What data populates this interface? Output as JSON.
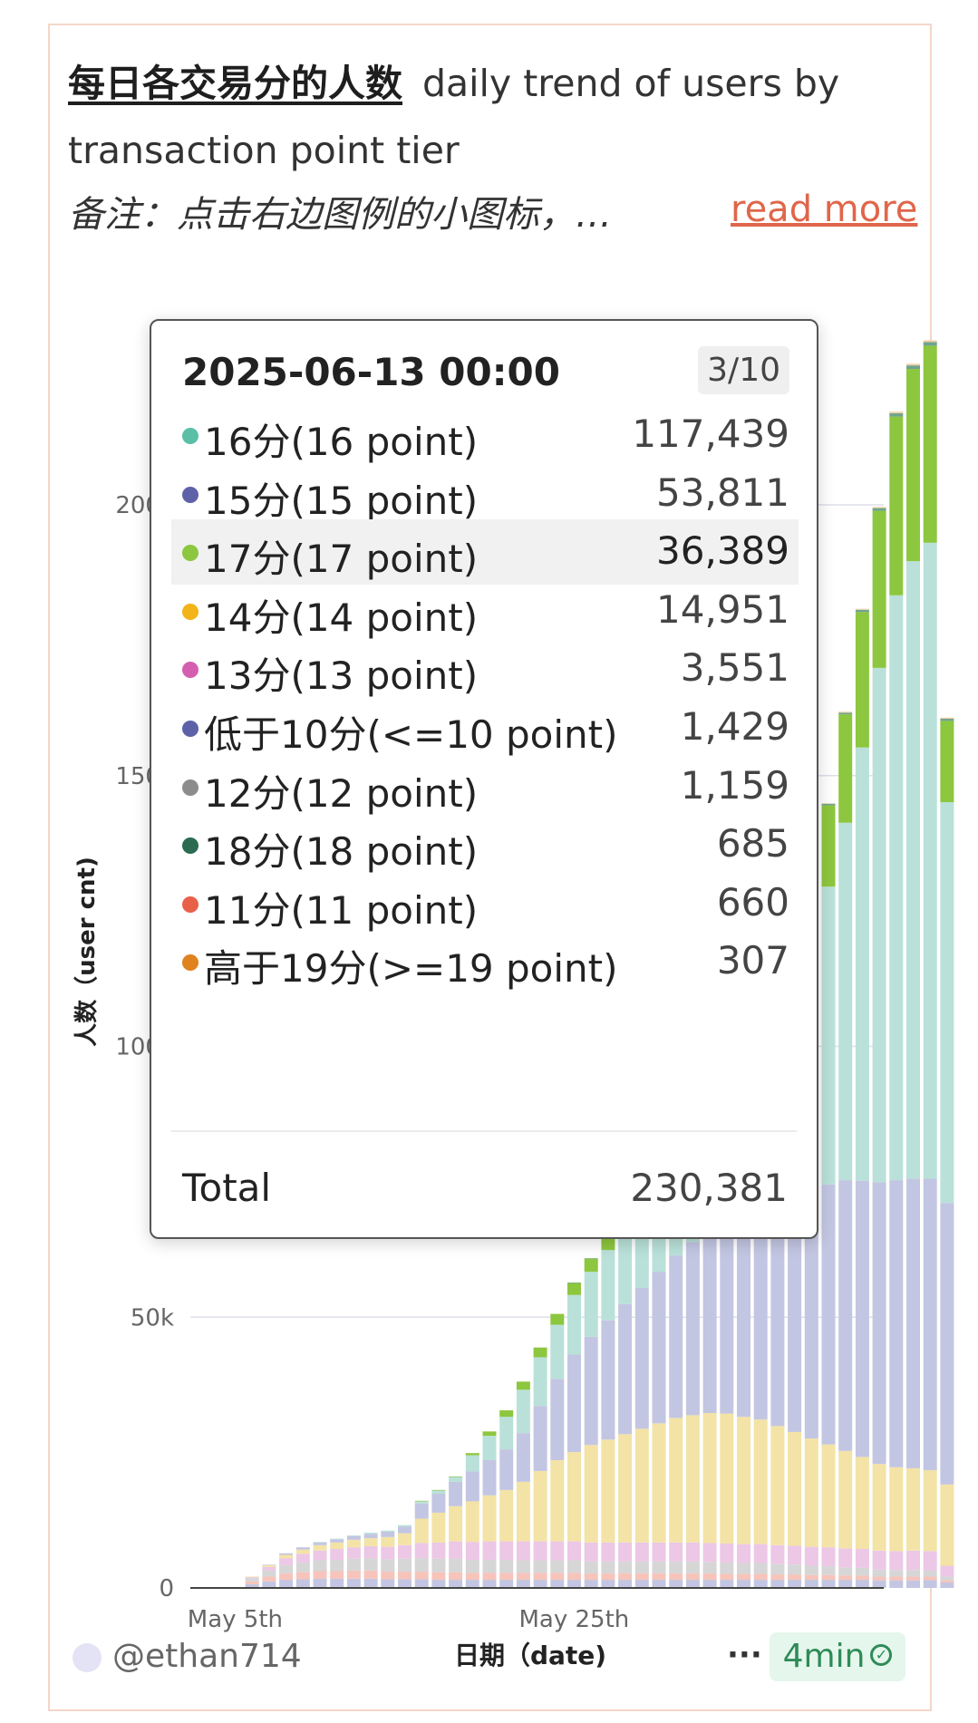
{
  "card": {
    "title_cn": "每日各交易分的人数",
    "title_en": "daily trend of users by transaction point tier",
    "note": "备注：点击右边图例的小图标，…",
    "read_more": "read more"
  },
  "tooltip": {
    "date": "2025-06-13 00:00",
    "page": "3/10",
    "rows": [
      {
        "label": "16分(16 point)",
        "value": "117,439",
        "color": "#5bbfa8"
      },
      {
        "label": "15分(15 point)",
        "value": "53,811",
        "color": "#5d62a8"
      },
      {
        "label": "17分(17 point)",
        "value": "36,389",
        "color": "#8dc63f"
      },
      {
        "label": "14分(14 point)",
        "value": "14,951",
        "color": "#f2b418"
      },
      {
        "label": "13分(13 point)",
        "value": "3,551",
        "color": "#d45fb0"
      },
      {
        "label": "低于10分(<=10 point)",
        "value": "1,429",
        "color": "#5d62a8"
      },
      {
        "label": "12分(12 point)",
        "value": "1,159",
        "color": "#8c8c8c"
      },
      {
        "label": "18分(18 point)",
        "value": "685",
        "color": "#2a6b52"
      },
      {
        "label": "11分(11 point)",
        "value": "660",
        "color": "#e8604a"
      },
      {
        "label": "高于19分(>=19 point)",
        "value": "307",
        "color": "#e0821e"
      }
    ],
    "highlight_index": 2,
    "total_label": "Total",
    "total_value": "230,381"
  },
  "footer": {
    "author": "@ethan714",
    "more": "···",
    "badge": "4min"
  },
  "chart_data": {
    "type": "bar",
    "stacked": true,
    "ylabel": "人数（user cnt)",
    "xlabel": "日期（date)",
    "ylim": [
      0,
      240000
    ],
    "y_ticks": [
      {
        "value": 0,
        "label": "0"
      },
      {
        "value": 50000,
        "label": "50k"
      },
      {
        "value": 100000,
        "label": "100k"
      },
      {
        "value": 150000,
        "label": "150k"
      },
      {
        "value": 200000,
        "label": "200k"
      }
    ],
    "x_ticks": [
      {
        "index": 2,
        "label": "May 5th"
      },
      {
        "index": 22,
        "label": "May 25th"
      }
    ],
    "start_date": "2025-05-03",
    "series_order": [
      "<=10",
      "11",
      "12",
      "13",
      "14",
      "15",
      "16",
      "17",
      "18",
      ">=19"
    ],
    "series_colors": {
      "<=10": "#c3c6e2",
      "11": "#f6c4bb",
      "12": "#d6d6d6",
      "13": "#ecc7e6",
      "14": "#f3e3a6",
      "15": "#c3c6e2",
      "16": "#b9e1d9",
      "17": "#8dc63f",
      "18": "#6fa48f",
      ">=19": "#f1cfa2"
    },
    "days": [
      {
        "date": "2025-05-04",
        "<=10": 700,
        "11": 500,
        "12": 600,
        "13": 200,
        "14": 100,
        "15": 0,
        "16": 0,
        "17": 0,
        "18": 0,
        ">=19": 0
      },
      {
        "date": "2025-05-05",
        "<=10": 1200,
        "11": 900,
        "12": 1100,
        "13": 700,
        "14": 300,
        "15": 100,
        "16": 0,
        "17": 0,
        "18": 0,
        ">=19": 0
      },
      {
        "date": "2025-05-06",
        "<=10": 1500,
        "11": 1200,
        "12": 1500,
        "13": 1300,
        "14": 600,
        "15": 300,
        "16": 0,
        "17": 0,
        "18": 0,
        ">=19": 0
      },
      {
        "date": "2025-05-07",
        "<=10": 1600,
        "11": 1300,
        "12": 1800,
        "13": 1600,
        "14": 800,
        "15": 400,
        "16": 0,
        "17": 0,
        "18": 0,
        ">=19": 0
      },
      {
        "date": "2025-05-08",
        "<=10": 1700,
        "11": 1400,
        "12": 2000,
        "13": 1800,
        "14": 1000,
        "15": 500,
        "16": 100,
        "17": 0,
        "18": 0,
        ">=19": 0
      },
      {
        "date": "2025-05-09",
        "<=10": 1700,
        "11": 1400,
        "12": 2100,
        "13": 2000,
        "14": 1200,
        "15": 600,
        "16": 100,
        "17": 0,
        "18": 0,
        ">=19": 0
      },
      {
        "date": "2025-05-10",
        "<=10": 1700,
        "11": 1500,
        "12": 2200,
        "13": 2100,
        "14": 1400,
        "15": 700,
        "16": 100,
        "17": 0,
        "18": 0,
        ">=19": 0
      },
      {
        "date": "2025-05-11",
        "<=10": 1700,
        "11": 1500,
        "12": 2300,
        "13": 2200,
        "14": 1500,
        "15": 800,
        "16": 200,
        "17": 0,
        "18": 0,
        ">=19": 0
      },
      {
        "date": "2025-05-12",
        "<=10": 1600,
        "11": 1400,
        "12": 2300,
        "13": 2300,
        "14": 1800,
        "15": 1000,
        "16": 200,
        "17": 0,
        "18": 0,
        ">=19": 0
      },
      {
        "date": "2025-05-13",
        "<=10": 1600,
        "11": 1400,
        "12": 2400,
        "13": 2500,
        "14": 2200,
        "15": 1200,
        "16": 300,
        "17": 0,
        "18": 0,
        ">=19": 0
      },
      {
        "date": "2025-05-14",
        "<=10": 1600,
        "11": 1400,
        "12": 2500,
        "13": 2800,
        "14": 4500,
        "15": 2800,
        "16": 400,
        "17": 100,
        "18": 0,
        ">=19": 0
      },
      {
        "date": "2025-05-15",
        "<=10": 1500,
        "11": 1400,
        "12": 2500,
        "13": 3000,
        "14": 5500,
        "15": 3500,
        "16": 600,
        "17": 100,
        "18": 0,
        ">=19": 0
      },
      {
        "date": "2025-05-16",
        "<=10": 1500,
        "11": 1400,
        "12": 2500,
        "13": 3200,
        "14": 6500,
        "15": 4500,
        "16": 900,
        "17": 100,
        "18": 0,
        ">=19": 0
      },
      {
        "date": "2025-05-17",
        "<=10": 1500,
        "11": 1300,
        "12": 2400,
        "13": 3300,
        "14": 7500,
        "15": 5500,
        "16": 3000,
        "17": 400,
        "18": 0,
        ">=19": 0
      },
      {
        "date": "2025-05-18",
        "<=10": 1500,
        "11": 1300,
        "12": 2400,
        "13": 3400,
        "14": 8500,
        "15": 6500,
        "16": 4500,
        "17": 800,
        "18": 0,
        ">=19": 0
      },
      {
        "date": "2025-05-19",
        "<=10": 1500,
        "11": 1300,
        "12": 2400,
        "13": 3400,
        "14": 9500,
        "15": 7500,
        "16": 6000,
        "17": 1200,
        "18": 0,
        ">=19": 0
      },
      {
        "date": "2025-05-20",
        "<=10": 1500,
        "11": 1300,
        "12": 2300,
        "13": 3500,
        "14": 11000,
        "15": 9000,
        "16": 8000,
        "17": 1500,
        "18": 0,
        ">=19": 0
      },
      {
        "date": "2025-05-21",
        "<=10": 1500,
        "11": 1300,
        "12": 2300,
        "13": 3500,
        "14": 13000,
        "15": 12000,
        "16": 9000,
        "17": 1800,
        "18": 0,
        ">=19": 0
      },
      {
        "date": "2025-05-22",
        "<=10": 1500,
        "11": 1300,
        "12": 2300,
        "13": 3500,
        "14": 15000,
        "15": 15000,
        "16": 10000,
        "17": 2000,
        "18": 0,
        ">=19": 0
      },
      {
        "date": "2025-05-23",
        "<=10": 1500,
        "11": 1300,
        "12": 2300,
        "13": 3500,
        "14": 16500,
        "15": 18000,
        "16": 11000,
        "17": 2200,
        "18": 100,
        ">=19": 0
      },
      {
        "date": "2025-05-24",
        "<=10": 1500,
        "11": 1200,
        "12": 2200,
        "13": 3500,
        "14": 18000,
        "15": 20000,
        "16": 12000,
        "17": 2400,
        "18": 100,
        ">=19": 0
      },
      {
        "date": "2025-05-25",
        "<=10": 1500,
        "11": 1200,
        "12": 2200,
        "13": 3500,
        "14": 19000,
        "15": 22000,
        "16": 13000,
        "17": 2600,
        "18": 100,
        ">=19": 0
      },
      {
        "date": "2025-05-26",
        "<=10": 1500,
        "11": 1200,
        "12": 2200,
        "13": 3500,
        "14": 20000,
        "15": 24000,
        "16": 14000,
        "17": 2800,
        "18": 100,
        ">=19": 0
      },
      {
        "date": "2025-05-27",
        "<=10": 1500,
        "11": 1200,
        "12": 2200,
        "13": 3500,
        "14": 21000,
        "15": 26000,
        "16": 15000,
        "17": 3000,
        "18": 100,
        ">=19": 0
      },
      {
        "date": "2025-05-28",
        "<=10": 1500,
        "11": 1200,
        "12": 2200,
        "13": 3500,
        "14": 22000,
        "15": 28000,
        "16": 16000,
        "17": 3200,
        "18": 100,
        ">=19": 0
      },
      {
        "date": "2025-05-29",
        "<=10": 1500,
        "11": 1200,
        "12": 2200,
        "13": 3500,
        "14": 23000,
        "15": 30000,
        "16": 17000,
        "17": 3400,
        "18": 100,
        ">=19": 0
      },
      {
        "date": "2025-05-30",
        "<=10": 1500,
        "11": 1200,
        "12": 2200,
        "13": 3500,
        "14": 23500,
        "15": 32000,
        "16": 19000,
        "17": 3600,
        "18": 100,
        ">=19": 0
      },
      {
        "date": "2025-05-31",
        "<=10": 1500,
        "11": 1200,
        "12": 2100,
        "13": 3500,
        "14": 24000,
        "15": 34000,
        "16": 21000,
        "17": 3800,
        "18": 100,
        ">=19": 0
      },
      {
        "date": "2025-06-01",
        "<=10": 1500,
        "11": 1100,
        "12": 2100,
        "13": 3500,
        "14": 24000,
        "15": 36000,
        "16": 23000,
        "17": 4000,
        "18": 100,
        ">=19": 0
      },
      {
        "date": "2025-06-02",
        "<=10": 1500,
        "11": 1100,
        "12": 2000,
        "13": 3500,
        "14": 23500,
        "15": 38000,
        "16": 25000,
        "17": 4500,
        "18": 100,
        ">=19": 0
      },
      {
        "date": "2025-06-03",
        "<=10": 1500,
        "11": 1100,
        "12": 2000,
        "13": 3500,
        "14": 23000,
        "15": 40000,
        "16": 28000,
        "17": 5000,
        "18": 100,
        ">=19": 0
      },
      {
        "date": "2025-06-04",
        "<=10": 1500,
        "11": 1000,
        "12": 1900,
        "13": 3500,
        "14": 22000,
        "15": 42000,
        "16": 32000,
        "17": 6000,
        "18": 200,
        ">=19": 100
      },
      {
        "date": "2025-06-05",
        "<=10": 1500,
        "11": 1000,
        "12": 1800,
        "13": 3500,
        "14": 21000,
        "15": 44000,
        "16": 38000,
        "17": 8000,
        "18": 200,
        ">=19": 100
      },
      {
        "date": "2025-06-06",
        "<=10": 1500,
        "11": 900,
        "12": 1700,
        "13": 3500,
        "14": 20000,
        "15": 46000,
        "16": 45000,
        "17": 11000,
        "18": 200,
        ">=19": 100
      },
      {
        "date": "2025-06-07",
        "<=10": 1500,
        "11": 900,
        "12": 1600,
        "13": 3500,
        "14": 19000,
        "15": 48000,
        "16": 55000,
        "17": 15000,
        "18": 300,
        ">=19": 100
      },
      {
        "date": "2025-06-08",
        "<=10": 1500,
        "11": 800,
        "12": 1500,
        "13": 3500,
        "14": 18000,
        "15": 50000,
        "16": 66000,
        "17": 20000,
        "18": 300,
        ">=19": 200
      },
      {
        "date": "2025-06-09",
        "<=10": 1500,
        "11": 800,
        "12": 1400,
        "13": 3500,
        "14": 17000,
        "15": 51000,
        "16": 80000,
        "17": 25000,
        "18": 400,
        ">=19": 200
      },
      {
        "date": "2025-06-10",
        "<=10": 1400,
        "11": 700,
        "12": 1300,
        "13": 3500,
        "14": 16000,
        "15": 52000,
        "16": 95000,
        "17": 29000,
        "18": 500,
        ">=19": 200
      },
      {
        "date": "2025-06-11",
        "<=10": 1400,
        "11": 700,
        "12": 1200,
        "13": 3500,
        "14": 15500,
        "15": 53000,
        "16": 108000,
        "17": 33000,
        "18": 600,
        ">=19": 300
      },
      {
        "date": "2025-06-12",
        "<=10": 1400,
        "11": 700,
        "12": 1200,
        "13": 3600,
        "14": 15200,
        "15": 53500,
        "16": 114000,
        "17": 35500,
        "18": 650,
        ">=19": 300
      },
      {
        "date": "2025-06-13",
        "<=10": 1429,
        "11": 660,
        "12": 1159,
        "13": 3551,
        "14": 14951,
        "15": 53811,
        "16": 117439,
        "17": 36389,
        "18": 685,
        ">=19": 307
      },
      {
        "date": "2025-06-14",
        "<=10": 1000,
        "11": 400,
        "12": 700,
        "13": 2000,
        "14": 15000,
        "15": 52000,
        "16": 74000,
        "17": 15000,
        "18": 400,
        ">=19": 200
      }
    ]
  }
}
